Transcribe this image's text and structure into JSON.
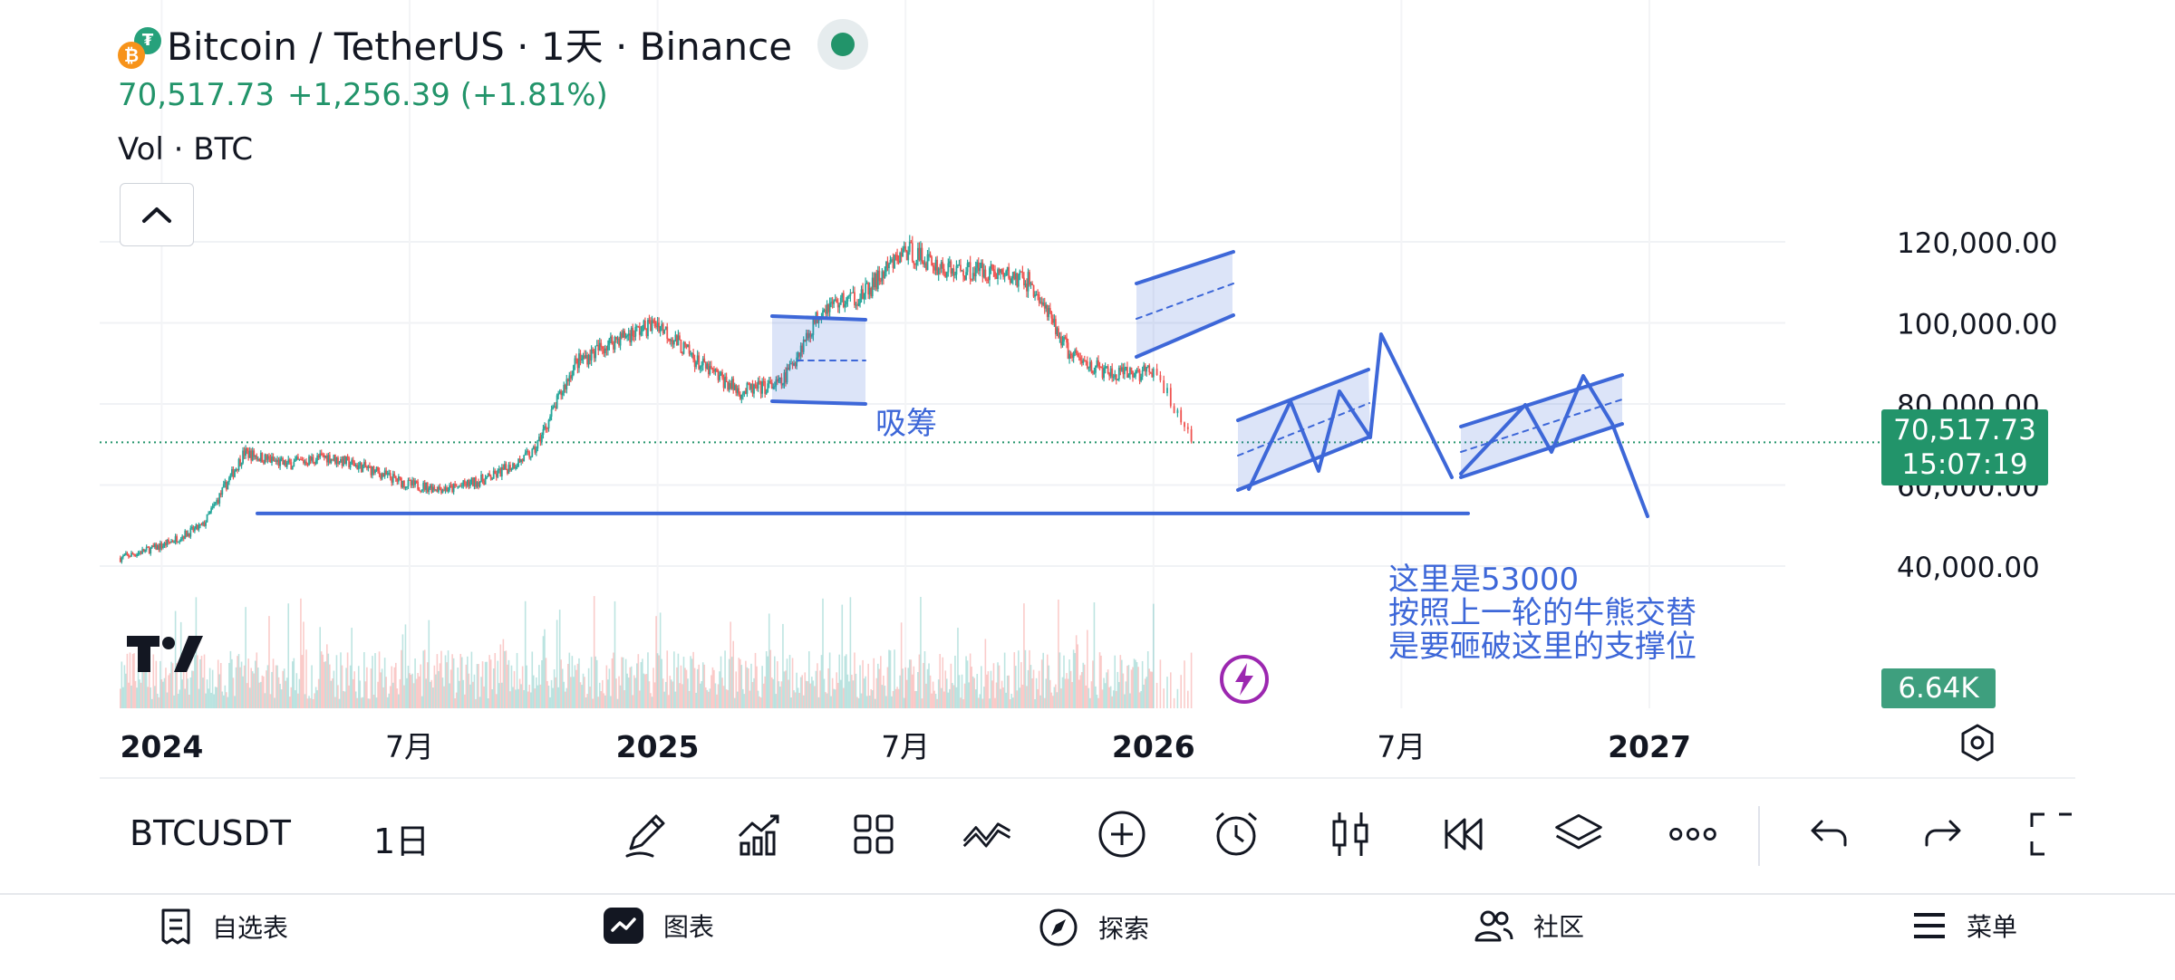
{
  "header": {
    "title": "Bitcoin / TetherUS · 1天 · Binance",
    "btc_icon": "₿",
    "tether_icon": "₮",
    "price": "70,517.73",
    "change": "+1,256.39 (+1.81%)",
    "indicator": "Vol · BTC"
  },
  "price_axis": {
    "ticks": [
      "120,000.00",
      "100,000.00",
      "80,000.00",
      "60,000.00",
      "40,000.00"
    ],
    "current_price_label": "70,517.73",
    "countdown": "15:07:19",
    "volume_label": "6.64K"
  },
  "time_axis": {
    "ticks": [
      "2024",
      "7月",
      "2025",
      "7月",
      "2026",
      "7月",
      "2027"
    ]
  },
  "annotations": {
    "accumulation": "吸筹",
    "note": "这里是53000\n按照上一轮的牛熊交替\n是要砸破这里的支撑位"
  },
  "toolbar": {
    "symbol": "BTCUSDT",
    "interval": "1日"
  },
  "nav": {
    "watchlist": "自选表",
    "chart": "图表",
    "explore": "探索",
    "community": "社区",
    "menu": "菜单"
  },
  "colors": {
    "up": "#22946a",
    "candle_up": "#26a69a",
    "candle_down": "#ef5350",
    "drawing": "#3d67d8",
    "flash": "#9c27b0"
  },
  "icons": {
    "pencil": "pencil-icon",
    "indicators": "indicators-icon",
    "layout": "layout-grid-icon",
    "compare": "compare-icon",
    "add": "plus-circle-icon",
    "alert": "alarm-icon",
    "chart_type": "candles-icon",
    "replay": "replay-icon",
    "layers": "layers-icon",
    "more": "more-icon",
    "undo": "undo-icon",
    "redo": "redo-icon",
    "fullscreen": "fullscreen-icon"
  },
  "chart_data": {
    "type": "candlestick",
    "symbol": "BTCUSDT",
    "interval": "1D",
    "x": [
      "2023-12",
      "2024-01",
      "2024-02",
      "2024-03",
      "2024-04",
      "2024-05",
      "2024-06",
      "2024-07",
      "2024-08",
      "2024-09",
      "2024-10",
      "2024-11",
      "2024-12",
      "2025-01",
      "2025-02",
      "2025-03",
      "2025-04",
      "2025-05",
      "2025-06",
      "2025-07",
      "2025-08",
      "2025-09",
      "2025-10",
      "2025-11",
      "2025-12",
      "2026-01",
      "2026-02"
    ],
    "close": [
      42000,
      45000,
      50000,
      68000,
      65000,
      67000,
      64000,
      60000,
      59000,
      62000,
      68000,
      90000,
      96000,
      100000,
      90000,
      83000,
      85000,
      104000,
      107000,
      118000,
      113000,
      113000,
      110000,
      92000,
      87000,
      88000,
      70517.73
    ],
    "ylim": [
      30000,
      130000
    ],
    "support_level": 53000,
    "current_price": 70517.73
  }
}
